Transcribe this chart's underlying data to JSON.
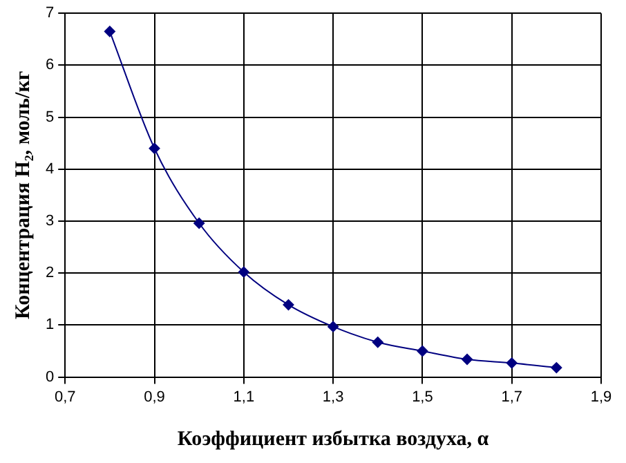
{
  "chart_data": {
    "type": "line",
    "xlabel": "Коэффициент избытка воздуха, α",
    "ylabel": "Концентрация H₂, моль/кг",
    "x": [
      0.8,
      0.9,
      1.0,
      1.1,
      1.2,
      1.3,
      1.4,
      1.5,
      1.6,
      1.7,
      1.8
    ],
    "series": [
      {
        "color": "#000080",
        "values": [
          6.65,
          4.4,
          2.96,
          2.02,
          1.39,
          0.97,
          0.67,
          0.5,
          0.34,
          0.27,
          0.18
        ]
      }
    ],
    "xlim": [
      0.7,
      1.9
    ],
    "xticks": [
      {
        "value": 0.7,
        "label": "0,7"
      },
      {
        "value": 0.9,
        "label": "0,9"
      },
      {
        "value": 1.1,
        "label": "1,1"
      },
      {
        "value": 1.3,
        "label": "1,3"
      },
      {
        "value": 1.5,
        "label": "1,5"
      },
      {
        "value": 1.7,
        "label": "1,7"
      },
      {
        "value": 1.9,
        "label": "1,9"
      }
    ],
    "ylim": [
      0,
      7
    ],
    "yticks": [
      0,
      1,
      2,
      3,
      4,
      5,
      6,
      7
    ],
    "grid": true,
    "legend": false,
    "marker": "diamond",
    "line_style": "solid"
  }
}
